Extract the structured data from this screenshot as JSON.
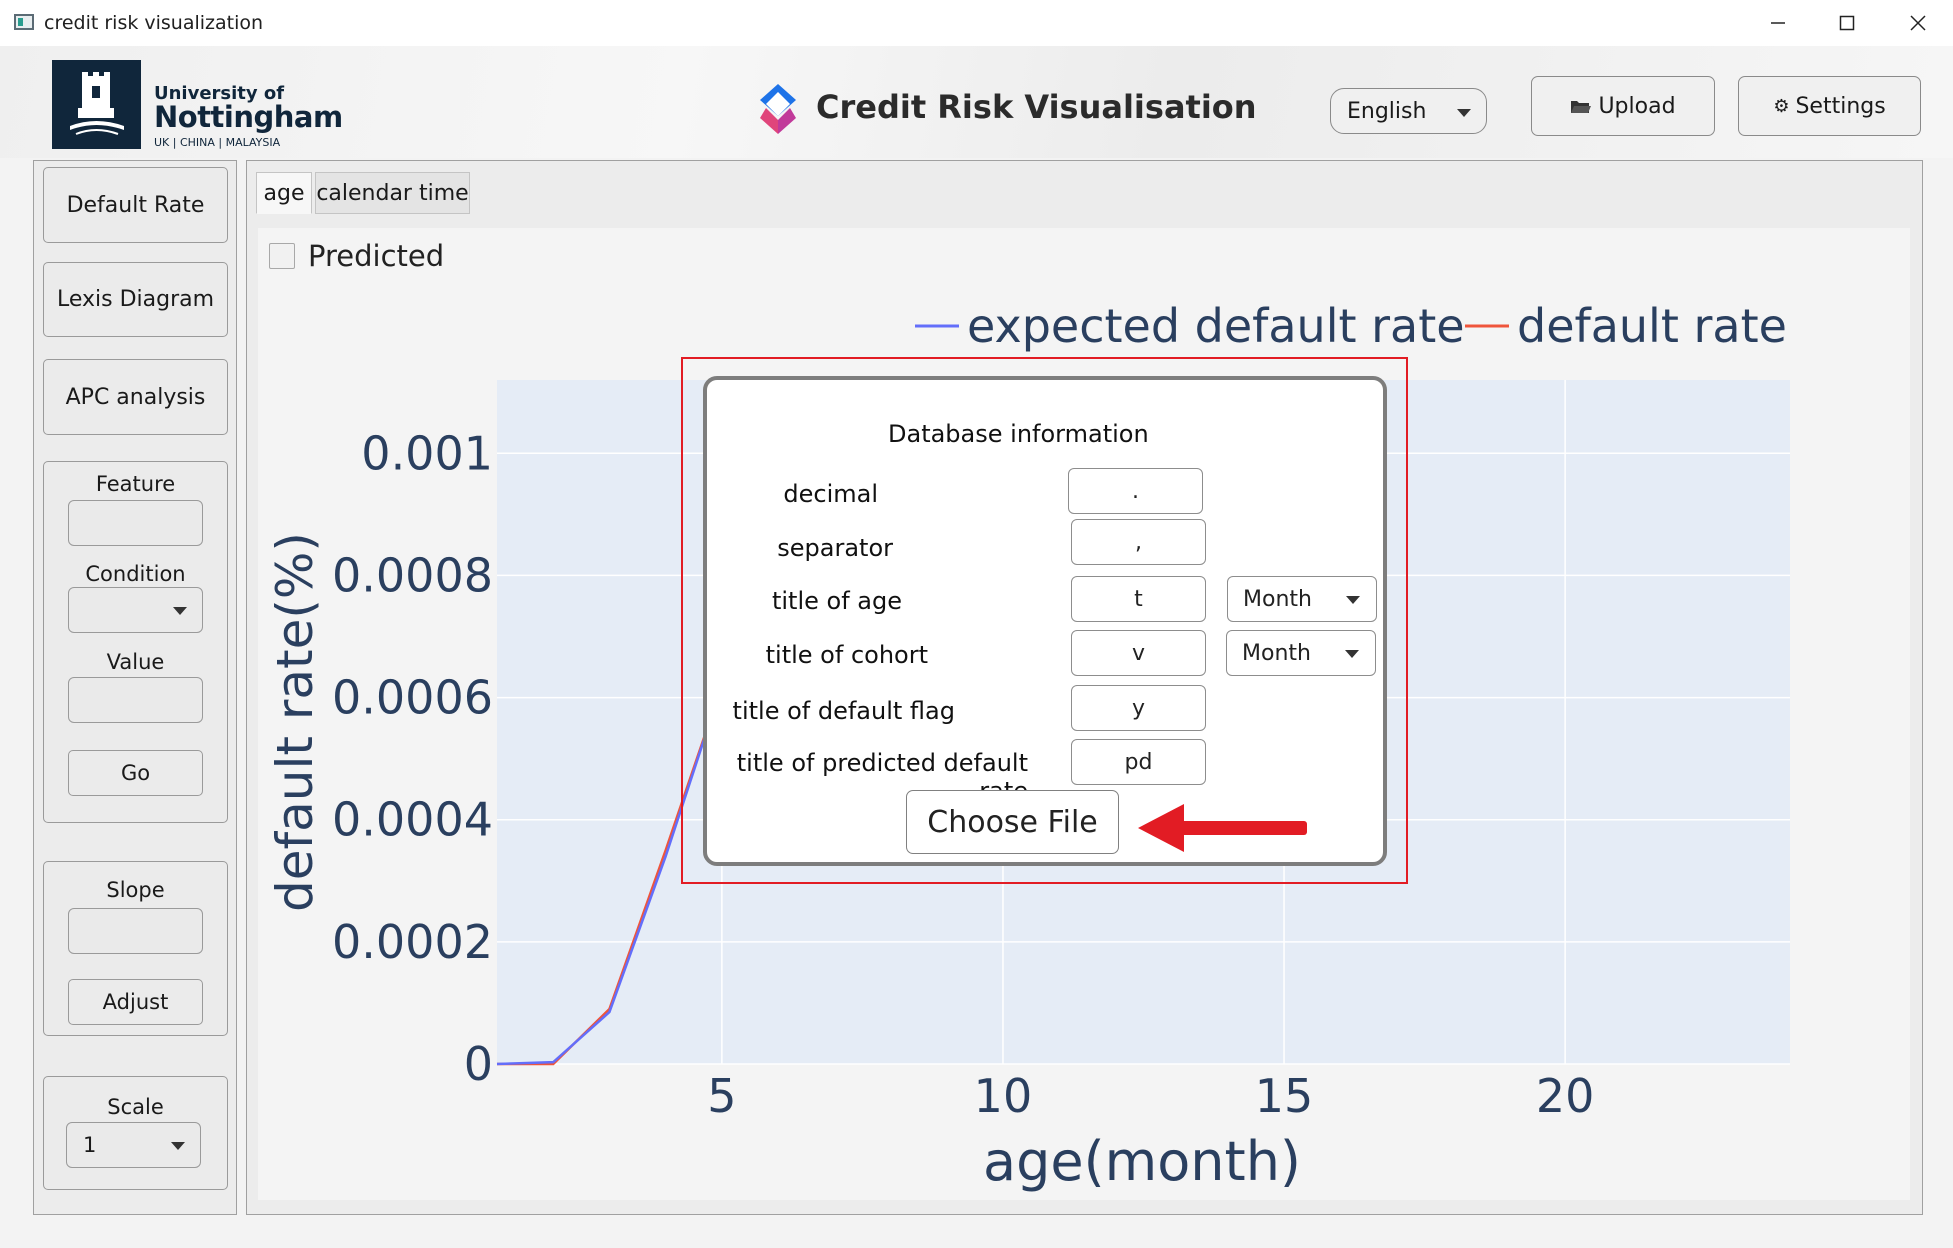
{
  "window": {
    "title": "credit risk visualization",
    "minimize_icon": "minimize-icon",
    "maximize_icon": "maximize-icon",
    "close_icon": "close-icon"
  },
  "header": {
    "logo": {
      "line1": "University of",
      "line2": "Nottingham",
      "line3": "UK | CHINA | MALAYSIA"
    },
    "app_title": "Credit Risk Visualisation",
    "language": "English",
    "upload_label": "Upload",
    "settings_label": "Settings"
  },
  "sidebar": {
    "default_rate": "Default Rate",
    "lexis_diagram": "Lexis Diagram",
    "apc_analysis": "APC analysis",
    "feature_label": "Feature",
    "feature_value": "",
    "condition_label": "Condition",
    "condition_value": "",
    "value_label": "Value",
    "value_value": "",
    "go_label": "Go",
    "slope_label": "Slope",
    "slope_value": "",
    "adjust_label": "Adjust",
    "scale_label": "Scale",
    "scale_value": "1"
  },
  "tabs": [
    {
      "label": "age",
      "active": true
    },
    {
      "label": "calendar time",
      "active": false
    }
  ],
  "predicted_label": "Predicted",
  "predicted_checked": false,
  "chart_data": {
    "type": "line",
    "xlabel": "age(month)",
    "ylabel": "default rate(%)",
    "xlim": [
      1,
      24
    ],
    "ylim": [
      0,
      0.00112
    ],
    "xticks": [
      5,
      10,
      15,
      20
    ],
    "yticks": [
      0,
      0.0002,
      0.0004,
      0.0006,
      0.0008,
      0.001
    ],
    "ytick_labels": [
      "0",
      "0.0002",
      "0.0004",
      "0.0006",
      "0.0008",
      "0.001"
    ],
    "xtick_labels": [
      "5",
      "10",
      "15",
      "20"
    ],
    "legend_position": "top-right",
    "grid": true,
    "series": [
      {
        "name": "expected default rate",
        "color": "#636efa",
        "x": [
          1,
          2,
          3,
          4,
          5
        ],
        "y": [
          0,
          3e-06,
          8.5e-05,
          0.00034,
          0.00062
        ]
      },
      {
        "name": "default rate",
        "color": "#ef553b",
        "x": [
          1,
          2,
          3,
          4,
          5
        ],
        "y": [
          0,
          0,
          9e-05,
          0.00035,
          0.00062
        ]
      }
    ]
  },
  "dialog": {
    "title": "Database information",
    "fields": {
      "decimal": {
        "label": "decimal",
        "value": "."
      },
      "separator": {
        "label": "separator",
        "value": ","
      },
      "age": {
        "label": "title of age",
        "value": "t",
        "unit": "Month"
      },
      "cohort": {
        "label": "title of cohort",
        "value": "v",
        "unit": "Month"
      },
      "default_flag": {
        "label": "title of default flag",
        "value": "y"
      },
      "predicted": {
        "label": "title of predicted default rate",
        "value": "pd"
      }
    },
    "choose_file": "Choose File"
  },
  "colors": {
    "dialog_outline": "#e21c24",
    "arrow": "#e21c24",
    "plot_bg": "#e5ecf6",
    "axis_text": "#2a3f5f"
  }
}
